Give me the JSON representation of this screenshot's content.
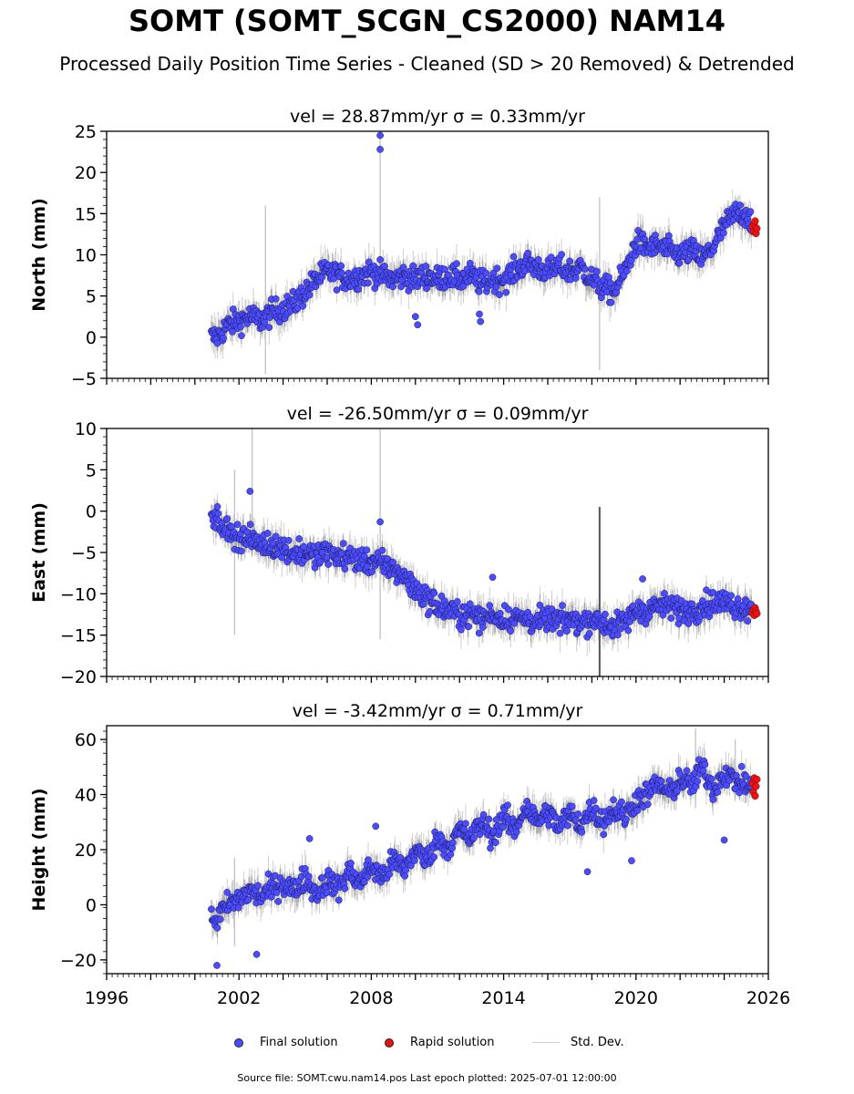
{
  "title": "SOMT (SOMT_SCGN_CS2000) NAM14",
  "subtitle": "Processed Daily Position Time Series - Cleaned (SD > 20 Removed) & Detrended",
  "source_text": "Source file: SOMT.cwu.nam14.pos  Last epoch plotted: 2025-07-01 12:00:00",
  "colors": {
    "final": "#4b4bff",
    "rapid": "#ee1111",
    "stddev": "#cfcfcf"
  },
  "chart_data": [
    {
      "type": "scatter",
      "title": "vel = 28.87mm/yr   σ = 0.33mm/yr",
      "xlabel": "",
      "ylabel": "North (mm)",
      "ylim": [
        -5,
        25
      ],
      "yticks": [
        -5,
        0,
        5,
        10,
        15,
        20,
        25
      ],
      "ytick_labels": [
        "−5",
        "0",
        "5",
        "10",
        "15",
        "20",
        "25"
      ],
      "xlim": [
        1996,
        2026
      ],
      "xticks": [],
      "xtick_labels": [],
      "series": [
        {
          "name": "Final solution",
          "x": [
            2001.0,
            2001.5,
            2002.0,
            2002.5,
            2003.0,
            2003.5,
            2004.0,
            2004.5,
            2005.0,
            2005.5,
            2006.0,
            2006.5,
            2007.0,
            2007.5,
            2008.0,
            2008.5,
            2009.0,
            2009.5,
            2010.0,
            2010.5,
            2011.0,
            2011.5,
            2012.0,
            2012.5,
            2013.0,
            2013.5,
            2014.0,
            2014.5,
            2015.0,
            2015.5,
            2016.0,
            2016.5,
            2017.0,
            2017.5,
            2018.0,
            2018.5,
            2019.0,
            2019.5,
            2020.0,
            2020.5,
            2021.0,
            2021.5,
            2022.0,
            2022.5,
            2023.0,
            2023.5,
            2024.0,
            2024.5,
            2025.0,
            2025.4
          ],
          "y": [
            0.0,
            1.5,
            2.0,
            2.5,
            2.0,
            3.0,
            3.5,
            4.0,
            5.5,
            7.0,
            8.0,
            7.5,
            7.0,
            7.5,
            8.0,
            7.5,
            7.0,
            7.5,
            7.0,
            7.5,
            7.0,
            7.5,
            7.0,
            7.5,
            6.5,
            7.0,
            7.0,
            8.0,
            9.0,
            8.5,
            8.0,
            8.5,
            8.0,
            8.5,
            7.0,
            6.0,
            5.5,
            8.0,
            11.5,
            11.0,
            11.0,
            10.5,
            10.0,
            10.5,
            9.5,
            11.0,
            13.5,
            15.0,
            15.0,
            13.5
          ]
        },
        {
          "name": "Rapid solution",
          "x": [
            2025.28,
            2025.32,
            2025.36,
            2025.4,
            2025.44,
            2025.48
          ],
          "y": [
            13.5,
            12.8,
            13.8,
            14.1,
            12.6,
            13.2
          ]
        }
      ],
      "outliers": {
        "x": [
          2008.4,
          2008.4,
          2010.0,
          2010.1,
          2012.9,
          2012.95
        ],
        "y": [
          24.5,
          22.8,
          2.5,
          1.5,
          2.8,
          1.9
        ]
      },
      "stddev_spikes": [
        {
          "x": 2003.2,
          "lo": -4.5,
          "hi": 16.0
        },
        {
          "x": 2018.35,
          "lo": -4.0,
          "hi": 17.0
        },
        {
          "x": 2008.4,
          "lo": 6.0,
          "hi": 24.5
        }
      ]
    },
    {
      "type": "scatter",
      "title": "vel = -26.50mm/yr   σ = 0.09mm/yr",
      "xlabel": "",
      "ylabel": "East (mm)",
      "ylim": [
        -20,
        10
      ],
      "yticks": [
        -20,
        -15,
        -10,
        -5,
        0,
        5,
        10
      ],
      "ytick_labels": [
        "−20",
        "−15",
        "−10",
        "−5",
        "0",
        "5",
        "10"
      ],
      "xlim": [
        1996,
        2026
      ],
      "xticks": [],
      "xtick_labels": [],
      "series": [
        {
          "name": "Final solution",
          "x": [
            2001.0,
            2001.5,
            2002.0,
            2002.5,
            2003.0,
            2003.5,
            2004.0,
            2004.5,
            2005.0,
            2005.5,
            2006.0,
            2006.5,
            2007.0,
            2007.5,
            2008.0,
            2008.5,
            2009.0,
            2009.5,
            2010.0,
            2010.5,
            2011.0,
            2011.5,
            2012.0,
            2012.5,
            2013.0,
            2013.5,
            2014.0,
            2014.5,
            2015.0,
            2015.5,
            2016.0,
            2016.5,
            2017.0,
            2017.5,
            2018.0,
            2018.5,
            2019.0,
            2019.5,
            2020.0,
            2020.5,
            2021.0,
            2021.5,
            2022.0,
            2022.5,
            2023.0,
            2023.5,
            2024.0,
            2024.5,
            2025.0,
            2025.4
          ],
          "y": [
            -1.0,
            -2.5,
            -3.0,
            -3.5,
            -4.0,
            -4.0,
            -4.5,
            -5.0,
            -5.0,
            -5.5,
            -5.0,
            -5.5,
            -5.5,
            -6.0,
            -6.0,
            -6.5,
            -7.0,
            -8.0,
            -9.5,
            -10.5,
            -11.5,
            -12.0,
            -12.5,
            -12.5,
            -13.0,
            -12.5,
            -13.0,
            -13.0,
            -13.0,
            -13.5,
            -13.0,
            -13.5,
            -13.0,
            -13.5,
            -13.0,
            -13.5,
            -14.0,
            -13.5,
            -12.0,
            -12.0,
            -11.5,
            -11.5,
            -12.0,
            -12.0,
            -11.5,
            -11.0,
            -11.0,
            -11.5,
            -11.5,
            -12.0
          ]
        },
        {
          "name": "Rapid solution",
          "x": [
            2025.28,
            2025.32,
            2025.36,
            2025.4,
            2025.44,
            2025.48
          ],
          "y": [
            -12.3,
            -11.9,
            -12.6,
            -11.7,
            -12.1,
            -12.4
          ]
        }
      ],
      "outliers": {
        "x": [
          2002.5,
          2008.4,
          2013.5,
          2020.3
        ],
        "y": [
          2.4,
          -1.3,
          -8.0,
          -8.2
        ]
      },
      "stddev_spikes": [
        {
          "x": 2001.8,
          "lo": -15.0,
          "hi": 5.0
        },
        {
          "x": 2002.6,
          "lo": -3.0,
          "hi": 10.0
        },
        {
          "x": 2008.4,
          "lo": -15.5,
          "hi": 10.0
        },
        {
          "x": 2018.35,
          "lo": -20.0,
          "hi": 0.5
        }
      ]
    },
    {
      "type": "scatter",
      "title": "vel = -3.42mm/yr   σ = 0.71mm/yr",
      "xlabel": "",
      "ylabel": "Height (mm)",
      "ylim": [
        -25,
        65
      ],
      "yticks": [
        -20,
        0,
        20,
        40,
        60
      ],
      "ytick_labels": [
        "−20",
        "0",
        "20",
        "40",
        "60"
      ],
      "xlim": [
        1996,
        2026
      ],
      "xticks": [
        1996,
        2002,
        2008,
        2014,
        2020,
        2026
      ],
      "xtick_labels": [
        "1996",
        "2002",
        "2008",
        "2014",
        "2020",
        "2026"
      ],
      "series": [
        {
          "name": "Final solution",
          "x": [
            2001.0,
            2001.5,
            2002.0,
            2002.5,
            2003.0,
            2003.5,
            2004.0,
            2004.5,
            2005.0,
            2005.5,
            2006.0,
            2006.5,
            2007.0,
            2007.5,
            2008.0,
            2008.5,
            2009.0,
            2009.5,
            2010.0,
            2010.5,
            2011.0,
            2011.5,
            2012.0,
            2012.5,
            2013.0,
            2013.5,
            2014.0,
            2014.5,
            2015.0,
            2015.5,
            2016.0,
            2016.5,
            2017.0,
            2017.5,
            2018.0,
            2018.5,
            2019.0,
            2019.5,
            2020.0,
            2020.5,
            2021.0,
            2021.5,
            2022.0,
            2022.5,
            2023.0,
            2023.5,
            2024.0,
            2024.5,
            2025.0,
            2025.4
          ],
          "y": [
            -5,
            0,
            2,
            5,
            3,
            6,
            8,
            5,
            10,
            4,
            9,
            6,
            12,
            8,
            14,
            10,
            16,
            13,
            20,
            16,
            24,
            21,
            27,
            24,
            30,
            25,
            32,
            27,
            36,
            30,
            34,
            28,
            33,
            29,
            35,
            30,
            35,
            32,
            38,
            40,
            44,
            40,
            46,
            43,
            50,
            42,
            48,
            45,
            44,
            42
          ]
        },
        {
          "name": "Rapid solution",
          "x": [
            2025.28,
            2025.32,
            2025.36,
            2025.4,
            2025.44,
            2025.48
          ],
          "y": [
            44.0,
            41.0,
            46.0,
            39.5,
            43.0,
            45.5
          ]
        }
      ],
      "outliers": {
        "x": [
          2001.0,
          2002.8,
          2005.2,
          2008.2,
          2017.8,
          2019.8,
          2024.0
        ],
        "y": [
          -22.0,
          -18.0,
          24.0,
          28.5,
          12.0,
          16.0,
          23.5
        ]
      },
      "stddev_spikes": [
        {
          "x": 2001.8,
          "lo": -15.0,
          "hi": 17.0
        },
        {
          "x": 2022.7,
          "lo": 35.0,
          "hi": 64.0
        },
        {
          "x": 2024.5,
          "lo": 38.0,
          "hi": 60.0
        }
      ]
    }
  ],
  "legend": {
    "final_label": "Final solution",
    "rapid_label": "Rapid solution",
    "stddev_label": "Std. Dev."
  }
}
